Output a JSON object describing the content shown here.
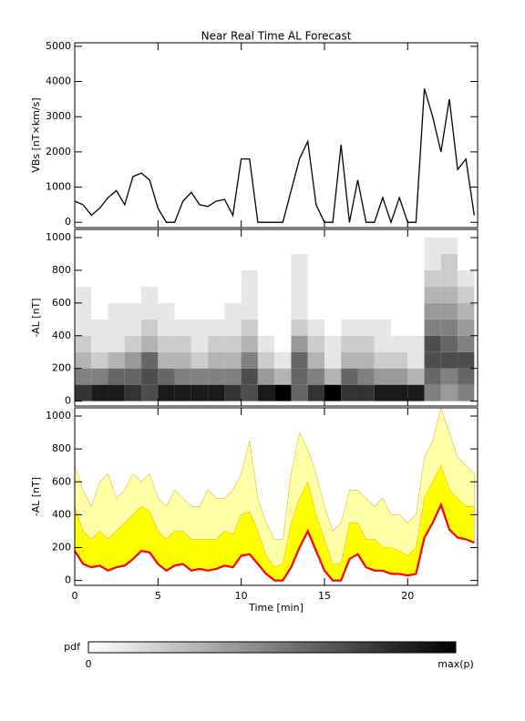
{
  "chart_data": [
    {
      "type": "line",
      "title": "Near Real Time AL Forecast",
      "ylabel": "VBs [nT×km/s]",
      "color": "#000000",
      "x": [
        0,
        0.5,
        1,
        1.5,
        2,
        2.5,
        3,
        3.5,
        4,
        4.5,
        5,
        5.5,
        6,
        6.5,
        7,
        7.5,
        8,
        8.5,
        9,
        9.5,
        10,
        10.5,
        11,
        11.5,
        12,
        12.5,
        13,
        13.5,
        14,
        14.5,
        15,
        15.5,
        16,
        16.5,
        17,
        17.5,
        18,
        18.5,
        19,
        19.5,
        20,
        20.5,
        21,
        21.5,
        22,
        22.5,
        23,
        23.5,
        24
      ],
      "values": [
        600,
        500,
        200,
        400,
        700,
        900,
        500,
        1300,
        1400,
        1200,
        400,
        0,
        0,
        600,
        850,
        500,
        450,
        600,
        650,
        200,
        1800,
        1800,
        0,
        0,
        0,
        0,
        900,
        1800,
        2300,
        500,
        0,
        0,
        2200,
        0,
        1200,
        0,
        0,
        700,
        0,
        700,
        0,
        0,
        3800,
        3000,
        2000,
        3500,
        1500,
        1800,
        200
      ],
      "xlim": [
        0,
        24.2
      ],
      "xticks": [
        0,
        5,
        10,
        15,
        20
      ],
      "ylim": [
        -150,
        5100
      ],
      "yticks": [
        0,
        1000,
        2000,
        3000,
        4000,
        5000
      ]
    },
    {
      "type": "heatmap",
      "ylabel": "-AL [nT]",
      "x_bins": [
        0,
        1,
        2,
        3,
        4,
        5,
        6,
        7,
        8,
        9,
        10,
        11,
        12,
        13,
        14,
        15,
        16,
        17,
        18,
        19,
        20,
        21,
        22,
        23,
        24
      ],
      "y_bins": [
        0,
        100,
        200,
        300,
        400,
        500,
        600,
        700,
        800,
        900,
        1000
      ],
      "density": [
        [
          0.8,
          0.5,
          0.3,
          0.2,
          0.1,
          0.1,
          0.1,
          0,
          0,
          0
        ],
        [
          0.9,
          0.5,
          0.2,
          0.1,
          0.1,
          0,
          0,
          0,
          0,
          0
        ],
        [
          0.9,
          0.6,
          0.3,
          0.1,
          0.1,
          0.1,
          0,
          0,
          0,
          0
        ],
        [
          0.8,
          0.6,
          0.4,
          0.2,
          0.1,
          0.1,
          0,
          0,
          0,
          0
        ],
        [
          0.7,
          0.7,
          0.6,
          0.3,
          0.2,
          0.1,
          0.1,
          0,
          0,
          0
        ],
        [
          0.9,
          0.6,
          0.3,
          0.2,
          0.1,
          0.1,
          0,
          0,
          0,
          0
        ],
        [
          0.9,
          0.5,
          0.3,
          0.2,
          0.1,
          0,
          0,
          0,
          0,
          0
        ],
        [
          0.9,
          0.5,
          0.2,
          0.1,
          0.1,
          0,
          0,
          0,
          0,
          0
        ],
        [
          0.9,
          0.5,
          0.3,
          0.2,
          0.1,
          0,
          0,
          0,
          0,
          0
        ],
        [
          0.8,
          0.5,
          0.3,
          0.2,
          0.1,
          0.1,
          0,
          0,
          0,
          0
        ],
        [
          0.7,
          0.7,
          0.5,
          0.3,
          0.2,
          0.1,
          0.1,
          0.1,
          0,
          0
        ],
        [
          0.9,
          0.4,
          0.2,
          0.1,
          0,
          0,
          0,
          0,
          0,
          0
        ],
        [
          1,
          0.3,
          0.1,
          0,
          0,
          0,
          0,
          0,
          0,
          0
        ],
        [
          0.6,
          0.6,
          0.6,
          0.4,
          0.2,
          0.1,
          0.1,
          0.1,
          0.1,
          0
        ],
        [
          0.8,
          0.5,
          0.3,
          0.2,
          0.1,
          0,
          0,
          0,
          0,
          0
        ],
        [
          1,
          0.3,
          0.1,
          0.1,
          0,
          0,
          0,
          0,
          0,
          0
        ],
        [
          0.8,
          0.6,
          0.3,
          0.2,
          0.1,
          0,
          0,
          0,
          0,
          0
        ],
        [
          0.8,
          0.5,
          0.3,
          0.2,
          0.1,
          0,
          0,
          0,
          0,
          0
        ],
        [
          0.9,
          0.4,
          0.2,
          0.1,
          0.1,
          0,
          0,
          0,
          0,
          0
        ],
        [
          0.9,
          0.4,
          0.2,
          0.1,
          0,
          0,
          0,
          0,
          0,
          0
        ],
        [
          0.9,
          0.3,
          0.1,
          0.1,
          0,
          0,
          0,
          0,
          0,
          0
        ],
        [
          0.5,
          0.6,
          0.7,
          0.7,
          0.5,
          0.4,
          0.3,
          0.2,
          0.1,
          0.1
        ],
        [
          0.4,
          0.5,
          0.7,
          0.6,
          0.5,
          0.4,
          0.3,
          0.2,
          0.2,
          0.1
        ],
        [
          0.5,
          0.6,
          0.7,
          0.5,
          0.4,
          0.3,
          0.2,
          0.1,
          0,
          0
        ]
      ],
      "xlim": [
        0,
        24.2
      ],
      "xticks": [
        0,
        5,
        10,
        15,
        20
      ],
      "ylim": [
        -30,
        1050
      ],
      "yticks": [
        0,
        200,
        400,
        600,
        800,
        1000
      ]
    },
    {
      "type": "band",
      "ylabel": "-AL [nT]",
      "xlabel": "Time [min]",
      "x": [
        0,
        0.5,
        1,
        1.5,
        2,
        2.5,
        3,
        3.5,
        4,
        4.5,
        5,
        5.5,
        6,
        6.5,
        7,
        7.5,
        8,
        8.5,
        9,
        9.5,
        10,
        10.5,
        11,
        11.5,
        12,
        12.5,
        13,
        13.5,
        14,
        14.5,
        15,
        15.5,
        16,
        16.5,
        17,
        17.5,
        18,
        18.5,
        19,
        19.5,
        20,
        20.5,
        21,
        21.5,
        22,
        22.5,
        23,
        23.5,
        24
      ],
      "median": [
        180,
        100,
        80,
        90,
        60,
        80,
        90,
        130,
        180,
        170,
        100,
        60,
        90,
        100,
        60,
        70,
        60,
        70,
        90,
        80,
        150,
        160,
        100,
        40,
        0,
        0,
        80,
        200,
        300,
        180,
        60,
        0,
        0,
        130,
        160,
        80,
        60,
        60,
        40,
        40,
        30,
        40,
        260,
        350,
        460,
        310,
        260,
        250,
        230
      ],
      "inner_upper": [
        450,
        300,
        250,
        300,
        250,
        300,
        350,
        400,
        450,
        420,
        300,
        250,
        300,
        300,
        250,
        250,
        250,
        250,
        300,
        280,
        400,
        420,
        300,
        150,
        80,
        100,
        350,
        500,
        600,
        400,
        250,
        100,
        100,
        350,
        350,
        250,
        250,
        200,
        200,
        180,
        150,
        200,
        500,
        600,
        700,
        550,
        500,
        450,
        450
      ],
      "outer_upper": [
        700,
        550,
        450,
        600,
        650,
        500,
        550,
        650,
        600,
        650,
        500,
        450,
        550,
        500,
        450,
        450,
        550,
        500,
        500,
        550,
        650,
        850,
        500,
        350,
        250,
        250,
        650,
        900,
        800,
        650,
        450,
        300,
        350,
        550,
        550,
        500,
        450,
        500,
        400,
        400,
        350,
        400,
        750,
        850,
        1050,
        900,
        750,
        700,
        650
      ],
      "median_color": "#ff0000",
      "inner_color": "#ffff00",
      "outer_color": "#ffffa8",
      "xlim": [
        0,
        24.2
      ],
      "xticks": [
        0,
        5,
        10,
        15,
        20
      ],
      "ylim": [
        -30,
        1050
      ],
      "yticks": [
        0,
        200,
        400,
        600,
        800,
        1000
      ]
    }
  ],
  "colorbar": {
    "label": "pdf",
    "min_label": "0",
    "max_label": "max(p)"
  }
}
